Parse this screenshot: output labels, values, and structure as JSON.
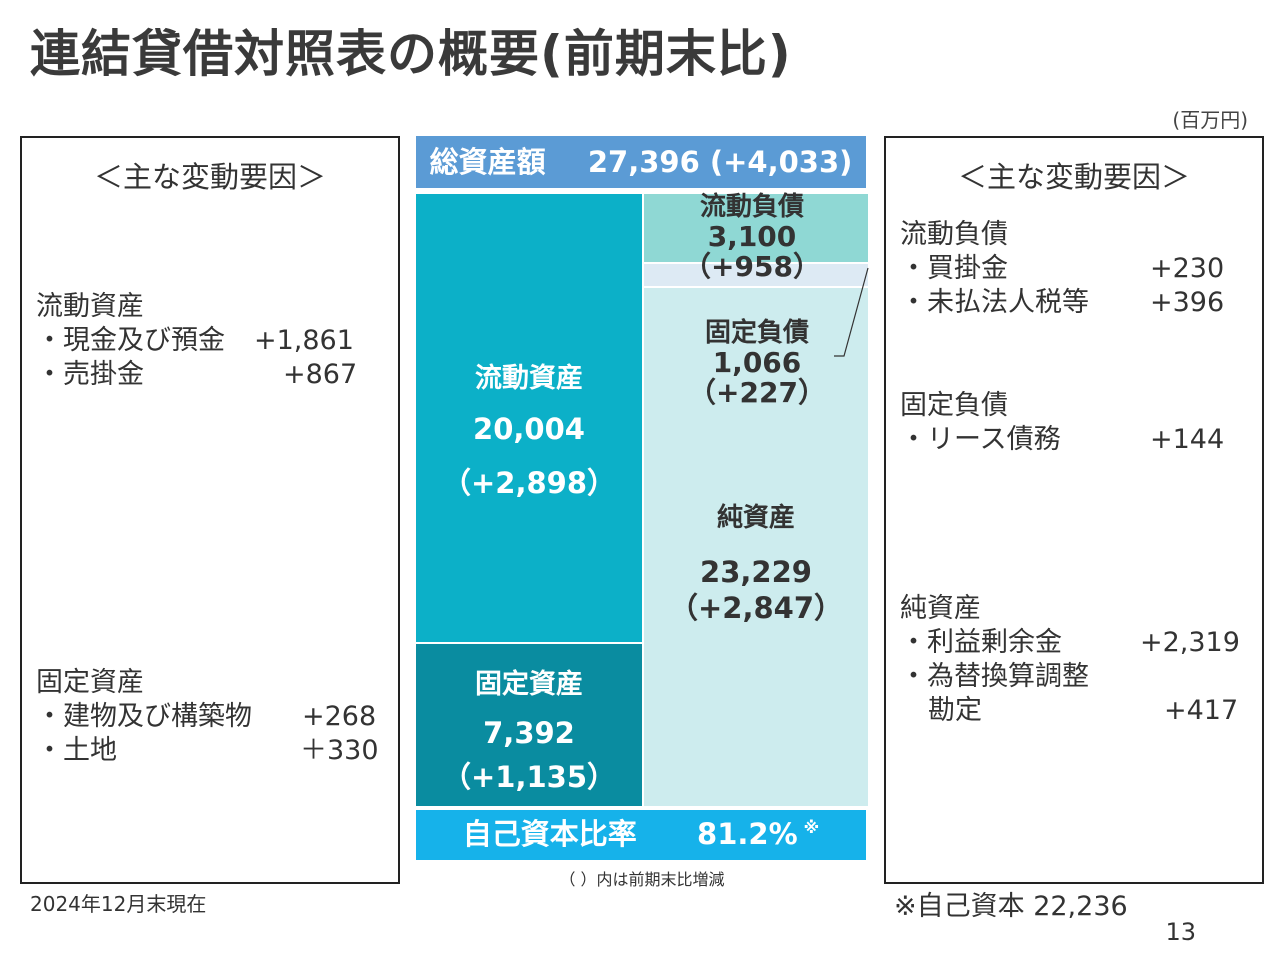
{
  "title": "連結貸借対照表の概要(前期末比)",
  "unit": "(百万円)",
  "left_panel": {
    "heading": "＜主な変動要因＞",
    "groups": [
      {
        "category": "流動資産",
        "items": [
          {
            "label": "・現金及び預金",
            "value": "+1,861"
          },
          {
            "label": "・売掛金",
            "value": "+867"
          }
        ]
      },
      {
        "category": "固定資産",
        "items": [
          {
            "label": "・建物及び構築物",
            "value": "+268"
          },
          {
            "label": "・土地",
            "value": "＋330"
          }
        ]
      }
    ]
  },
  "right_panel": {
    "heading": "＜主な変動要因＞",
    "groups": [
      {
        "category": "流動負債",
        "items": [
          {
            "label": "・買掛金",
            "value": "+230"
          },
          {
            "label": "・未払法人税等",
            "value": "+396"
          }
        ]
      },
      {
        "category": "固定負債",
        "items": [
          {
            "label": "・リース債務",
            "value": "+144"
          }
        ]
      },
      {
        "category": "純資産",
        "items": [
          {
            "label": "・利益剰余金",
            "value": "+2,319"
          },
          {
            "label": "・為替換算調整",
            "value": ""
          },
          {
            "label": "勘定",
            "value": "+417"
          }
        ]
      }
    ]
  },
  "balance_sheet": {
    "total_assets": {
      "label": "総資産額",
      "value": "27,396 (+4,033)"
    },
    "current_assets": {
      "label": "流動資産",
      "value": "20,004",
      "change": "（+2,898）"
    },
    "fixed_assets": {
      "label": "固定資産",
      "value": "7,392",
      "change": "（+1,135）"
    },
    "current_liabilities": {
      "label": "流動負債",
      "value": "3,100",
      "change": "（+958）"
    },
    "fixed_liabilities": {
      "label": "固定負債",
      "value": "1,066",
      "change": "（+227）"
    },
    "net_assets": {
      "label": "純資産",
      "value": "23,229",
      "change": "（+2,847）"
    },
    "equity_ratio": {
      "label": "自己資本比率",
      "value": "81.2%",
      "mark": "※"
    }
  },
  "caption": "（ ）内は前期末比増減",
  "date_note": "2024年12月末現在",
  "equity_note": "※自己資本 22,236",
  "page_number": "13",
  "colors": {
    "total_bar": "#5b9bd5",
    "current_assets": "#0cb0c8",
    "fixed_assets": "#0a8ca0",
    "current_liabilities": "#8fd8d4",
    "net_assets": "#cdecee",
    "equity_ratio_bar": "#16b2ea"
  }
}
